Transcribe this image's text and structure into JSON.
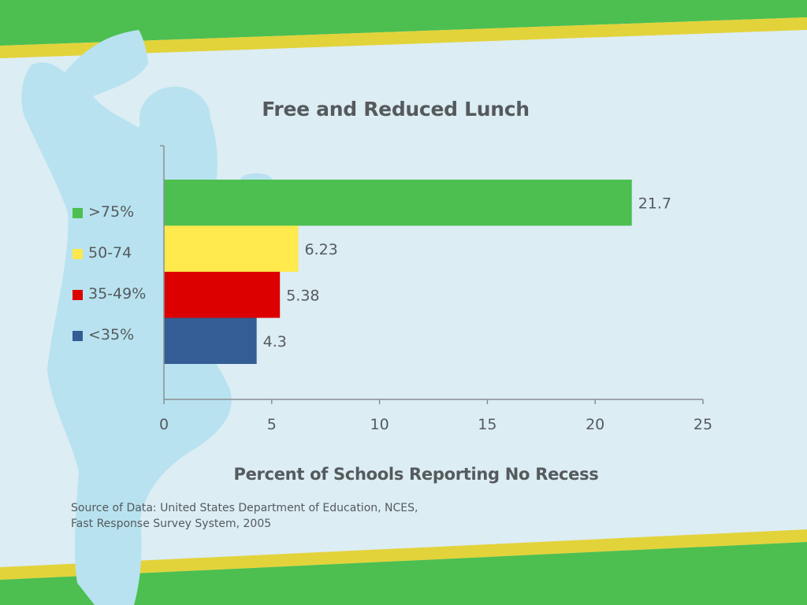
{
  "chart_data": {
    "type": "bar",
    "orientation": "horizontal",
    "title": "Free and Reduced Lunch",
    "xlabel": "Percent of Schools Reporting No Recess",
    "ylabel": "",
    "xlim": [
      0,
      25
    ],
    "xticks": [
      "0",
      "5",
      "10",
      "15",
      "20",
      "25"
    ],
    "categories": [
      ">75%",
      "50-74",
      "35-49%",
      "<35%"
    ],
    "values": [
      21.7,
      6.23,
      5.38,
      4.3
    ],
    "value_labels": [
      "21.7",
      "6.23",
      "5.38",
      "4.3"
    ],
    "colors": [
      "#4cbf50",
      "#ffe94d",
      "#dd0000",
      "#345d95"
    ],
    "legend_position": "left",
    "grid": false
  },
  "source": {
    "line1": "Source of Data: United States Department of Education, NCES,",
    "line2": "Fast Response Survey System, 2005"
  },
  "theme": {
    "background": "#dcedf4",
    "band_green": "#4cbf50",
    "band_yellow": "#e3d33a",
    "silhouette": "#b8e2ef",
    "text": "#555a5c"
  }
}
